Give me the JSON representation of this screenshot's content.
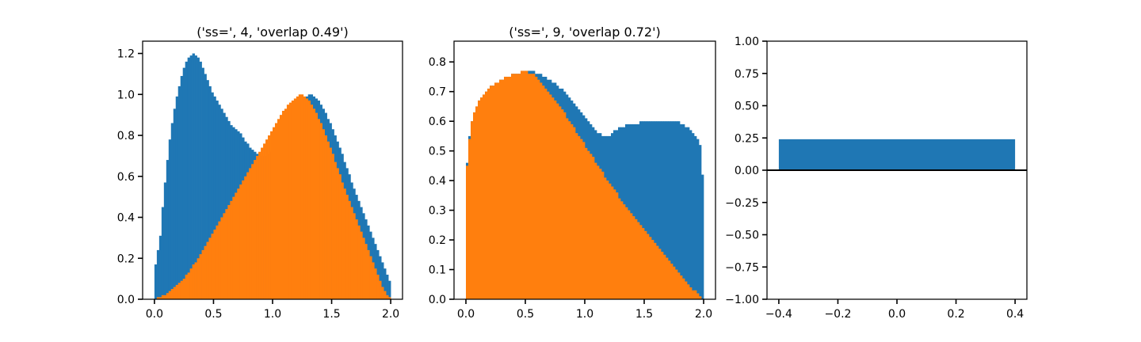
{
  "colors": {
    "blue": "#1f77b4",
    "orange": "#ff7f0e"
  },
  "chart_data": [
    {
      "type": "bar",
      "title": "('ss=', 4, 'overlap 0.49')",
      "xlabel": "",
      "ylabel": "",
      "xlim": [
        -0.1,
        2.1
      ],
      "ylim": [
        0,
        1.26
      ],
      "bin_range": [
        0,
        2
      ],
      "xticks": [
        0.0,
        0.5,
        1.0,
        1.5,
        2.0
      ],
      "xtick_labels": [
        "0.0",
        "0.5",
        "1.0",
        "1.5",
        "2.0"
      ],
      "yticks": [
        0.0,
        0.2,
        0.4,
        0.6,
        0.8,
        1.0,
        1.2
      ],
      "ytick_labels": [
        "0.0",
        "0.2",
        "0.4",
        "0.6",
        "0.8",
        "1.0",
        "1.2"
      ],
      "series": [
        {
          "color": "blue",
          "values": [
            0.17,
            0.24,
            0.31,
            0.45,
            0.57,
            0.68,
            0.78,
            0.86,
            0.93,
            0.99,
            1.04,
            1.09,
            1.13,
            1.16,
            1.18,
            1.19,
            1.2,
            1.19,
            1.18,
            1.16,
            1.13,
            1.1,
            1.07,
            1.04,
            1.01,
            0.99,
            0.97,
            0.95,
            0.93,
            0.91,
            0.89,
            0.87,
            0.85,
            0.84,
            0.83,
            0.82,
            0.81,
            0.79,
            0.77,
            0.76,
            0.74,
            0.73,
            0.72,
            0.71,
            0.7,
            0.7,
            0.7,
            0.7,
            0.71,
            0.72,
            0.73,
            0.74,
            0.76,
            0.78,
            0.8,
            0.82,
            0.84,
            0.86,
            0.88,
            0.9,
            0.92,
            0.94,
            0.96,
            0.98,
            0.99,
            1.0,
            1.0,
            0.99,
            0.98,
            0.97,
            0.95,
            0.93,
            0.91,
            0.88,
            0.86,
            0.83,
            0.8,
            0.77,
            0.74,
            0.71,
            0.67,
            0.64,
            0.61,
            0.57,
            0.54,
            0.51,
            0.48,
            0.45,
            0.42,
            0.39,
            0.36,
            0.33,
            0.3,
            0.27,
            0.24,
            0.21,
            0.18,
            0.15,
            0.12,
            0.09
          ]
        },
        {
          "color": "orange",
          "values": [
            0.0,
            0.01,
            0.01,
            0.02,
            0.02,
            0.03,
            0.04,
            0.05,
            0.06,
            0.07,
            0.08,
            0.09,
            0.1,
            0.12,
            0.13,
            0.15,
            0.17,
            0.18,
            0.2,
            0.22,
            0.24,
            0.26,
            0.28,
            0.3,
            0.32,
            0.34,
            0.36,
            0.38,
            0.4,
            0.42,
            0.44,
            0.46,
            0.48,
            0.5,
            0.52,
            0.54,
            0.56,
            0.58,
            0.6,
            0.62,
            0.64,
            0.66,
            0.68,
            0.7,
            0.72,
            0.74,
            0.76,
            0.78,
            0.8,
            0.82,
            0.84,
            0.86,
            0.88,
            0.9,
            0.92,
            0.93,
            0.95,
            0.96,
            0.97,
            0.98,
            0.99,
            1.0,
            1.0,
            0.99,
            0.98,
            0.97,
            0.95,
            0.93,
            0.91,
            0.88,
            0.86,
            0.83,
            0.8,
            0.77,
            0.74,
            0.71,
            0.67,
            0.64,
            0.61,
            0.57,
            0.54,
            0.51,
            0.48,
            0.45,
            0.42,
            0.39,
            0.36,
            0.33,
            0.3,
            0.27,
            0.24,
            0.21,
            0.18,
            0.15,
            0.12,
            0.09,
            0.06,
            0.04,
            0.02,
            0.01
          ]
        }
      ]
    },
    {
      "type": "bar",
      "title": "('ss=', 9, 'overlap 0.72')",
      "xlabel": "",
      "ylabel": "",
      "xlim": [
        -0.1,
        2.1
      ],
      "ylim": [
        0,
        0.87
      ],
      "bin_range": [
        0,
        2
      ],
      "xticks": [
        0.0,
        0.5,
        1.0,
        1.5,
        2.0
      ],
      "xtick_labels": [
        "0.0",
        "0.5",
        "1.0",
        "1.5",
        "2.0"
      ],
      "yticks": [
        0.0,
        0.1,
        0.2,
        0.3,
        0.4,
        0.5,
        0.6,
        0.7,
        0.8
      ],
      "ytick_labels": [
        "0.0",
        "0.1",
        "0.2",
        "0.3",
        "0.4",
        "0.5",
        "0.6",
        "0.7",
        "0.8"
      ],
      "series": [
        {
          "color": "blue",
          "values": [
            0.46,
            0.55,
            0.6,
            0.63,
            0.65,
            0.67,
            0.68,
            0.69,
            0.7,
            0.71,
            0.72,
            0.72,
            0.73,
            0.73,
            0.74,
            0.74,
            0.75,
            0.75,
            0.75,
            0.76,
            0.76,
            0.76,
            0.76,
            0.77,
            0.77,
            0.77,
            0.77,
            0.77,
            0.77,
            0.76,
            0.76,
            0.76,
            0.75,
            0.75,
            0.74,
            0.74,
            0.73,
            0.73,
            0.72,
            0.71,
            0.71,
            0.7,
            0.69,
            0.68,
            0.67,
            0.66,
            0.65,
            0.64,
            0.63,
            0.62,
            0.61,
            0.6,
            0.59,
            0.58,
            0.57,
            0.56,
            0.56,
            0.55,
            0.55,
            0.55,
            0.55,
            0.56,
            0.57,
            0.57,
            0.58,
            0.58,
            0.58,
            0.59,
            0.59,
            0.59,
            0.59,
            0.59,
            0.59,
            0.6,
            0.6,
            0.6,
            0.6,
            0.6,
            0.6,
            0.6,
            0.6,
            0.6,
            0.6,
            0.6,
            0.6,
            0.6,
            0.6,
            0.6,
            0.6,
            0.6,
            0.59,
            0.59,
            0.58,
            0.58,
            0.57,
            0.56,
            0.55,
            0.54,
            0.52,
            0.42
          ]
        },
        {
          "color": "orange",
          "values": [
            0.45,
            0.54,
            0.6,
            0.63,
            0.65,
            0.67,
            0.68,
            0.69,
            0.7,
            0.71,
            0.72,
            0.72,
            0.73,
            0.73,
            0.74,
            0.74,
            0.75,
            0.75,
            0.75,
            0.76,
            0.76,
            0.76,
            0.76,
            0.77,
            0.77,
            0.77,
            0.76,
            0.76,
            0.76,
            0.75,
            0.74,
            0.73,
            0.72,
            0.71,
            0.7,
            0.69,
            0.68,
            0.67,
            0.66,
            0.65,
            0.64,
            0.63,
            0.61,
            0.6,
            0.59,
            0.58,
            0.56,
            0.55,
            0.54,
            0.53,
            0.51,
            0.5,
            0.49,
            0.48,
            0.46,
            0.45,
            0.44,
            0.43,
            0.41,
            0.4,
            0.39,
            0.38,
            0.37,
            0.36,
            0.34,
            0.33,
            0.32,
            0.31,
            0.3,
            0.29,
            0.28,
            0.27,
            0.26,
            0.25,
            0.24,
            0.23,
            0.22,
            0.21,
            0.2,
            0.19,
            0.18,
            0.17,
            0.16,
            0.15,
            0.14,
            0.13,
            0.12,
            0.11,
            0.1,
            0.09,
            0.08,
            0.07,
            0.06,
            0.05,
            0.04,
            0.03,
            0.03,
            0.02,
            0.01,
            0.0
          ]
        }
      ]
    },
    {
      "type": "bar",
      "title": "",
      "xlabel": "",
      "ylabel": "",
      "xlim": [
        -0.44,
        0.44
      ],
      "ylim": [
        -1.0,
        1.0
      ],
      "xticks": [
        -0.4,
        -0.2,
        0.0,
        0.2,
        0.4
      ],
      "xtick_labels": [
        "−0.4",
        "−0.2",
        "0.0",
        "0.2",
        "0.4"
      ],
      "yticks": [
        -1.0,
        -0.75,
        -0.5,
        -0.25,
        0.0,
        0.25,
        0.5,
        0.75,
        1.0
      ],
      "ytick_labels": [
        "−1.00",
        "−0.75",
        "−0.50",
        "−0.25",
        "0.00",
        "0.25",
        "0.50",
        "0.75",
        "1.00"
      ],
      "categories": [
        0.0
      ],
      "values": [
        0.24
      ],
      "bar_width": 0.8,
      "color": "blue",
      "hline_y": 0.0
    }
  ]
}
